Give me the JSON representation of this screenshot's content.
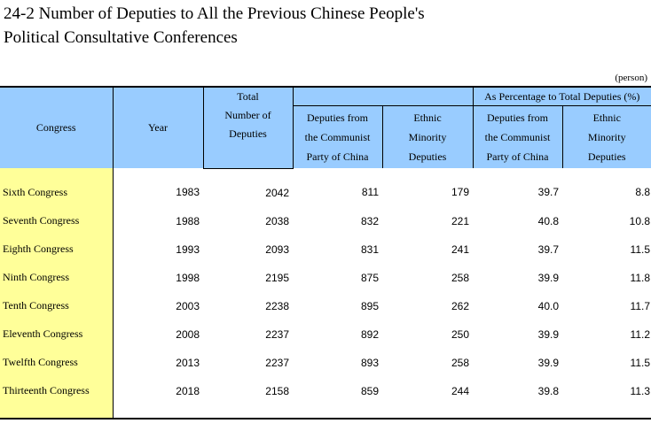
{
  "title": {
    "line1": "24-2  Number of Deputies to All the Previous Chinese People's",
    "line2": "Political Consultative Conferences"
  },
  "unit": "(person)",
  "header": {
    "congress": "Congress",
    "year": "Year",
    "total": [
      "Total",
      "Number of",
      "Deputies"
    ],
    "communist": [
      "Deputies from",
      "the Communist",
      "Party of China"
    ],
    "ethnic": [
      "Ethnic",
      "Minority",
      "Deputies"
    ],
    "pct_group": "As Percentage to Total Deputies (%)",
    "pct_communist": [
      "Deputies from",
      "the Communist",
      "Party of China"
    ],
    "pct_ethnic": [
      "Ethnic",
      "Minority",
      "Deputies"
    ]
  },
  "rows": [
    {
      "congress": "Sixth Congress",
      "year": "1983",
      "total": "2042",
      "communist": "811",
      "ethnic": "179",
      "pct_communist": "39.7",
      "pct_ethnic": "8.8"
    },
    {
      "congress": "Seventh Congress",
      "year": "1988",
      "total": "2038",
      "communist": "832",
      "ethnic": "221",
      "pct_communist": "40.8",
      "pct_ethnic": "10.8"
    },
    {
      "congress": "Eighth Congress",
      "year": "1993",
      "total": "2093",
      "communist": "831",
      "ethnic": "241",
      "pct_communist": "39.7",
      "pct_ethnic": "11.5"
    },
    {
      "congress": "Ninth Congress",
      "year": "1998",
      "total": "2195",
      "communist": "875",
      "ethnic": "258",
      "pct_communist": "39.9",
      "pct_ethnic": "11.8"
    },
    {
      "congress": "Tenth Congress",
      "year": "2003",
      "total": "2238",
      "communist": "895",
      "ethnic": "262",
      "pct_communist": "40.0",
      "pct_ethnic": "11.7"
    },
    {
      "congress": "Eleventh Congress",
      "year": "2008",
      "total": "2237",
      "communist": "892",
      "ethnic": "250",
      "pct_communist": "39.9",
      "pct_ethnic": "11.2"
    },
    {
      "congress": "Twelfth Congress",
      "year": "2013",
      "total": "2237",
      "communist": "893",
      "ethnic": "258",
      "pct_communist": "39.9",
      "pct_ethnic": "11.5"
    },
    {
      "congress": "Thirteenth Congress",
      "year": "2018",
      "total": "2158",
      "communist": "859",
      "ethnic": "244",
      "pct_communist": "39.8",
      "pct_ethnic": "11.3"
    }
  ],
  "colors": {
    "header_bg": "#99ccff",
    "congress_col_bg": "#ffff99",
    "text": "#000000"
  }
}
